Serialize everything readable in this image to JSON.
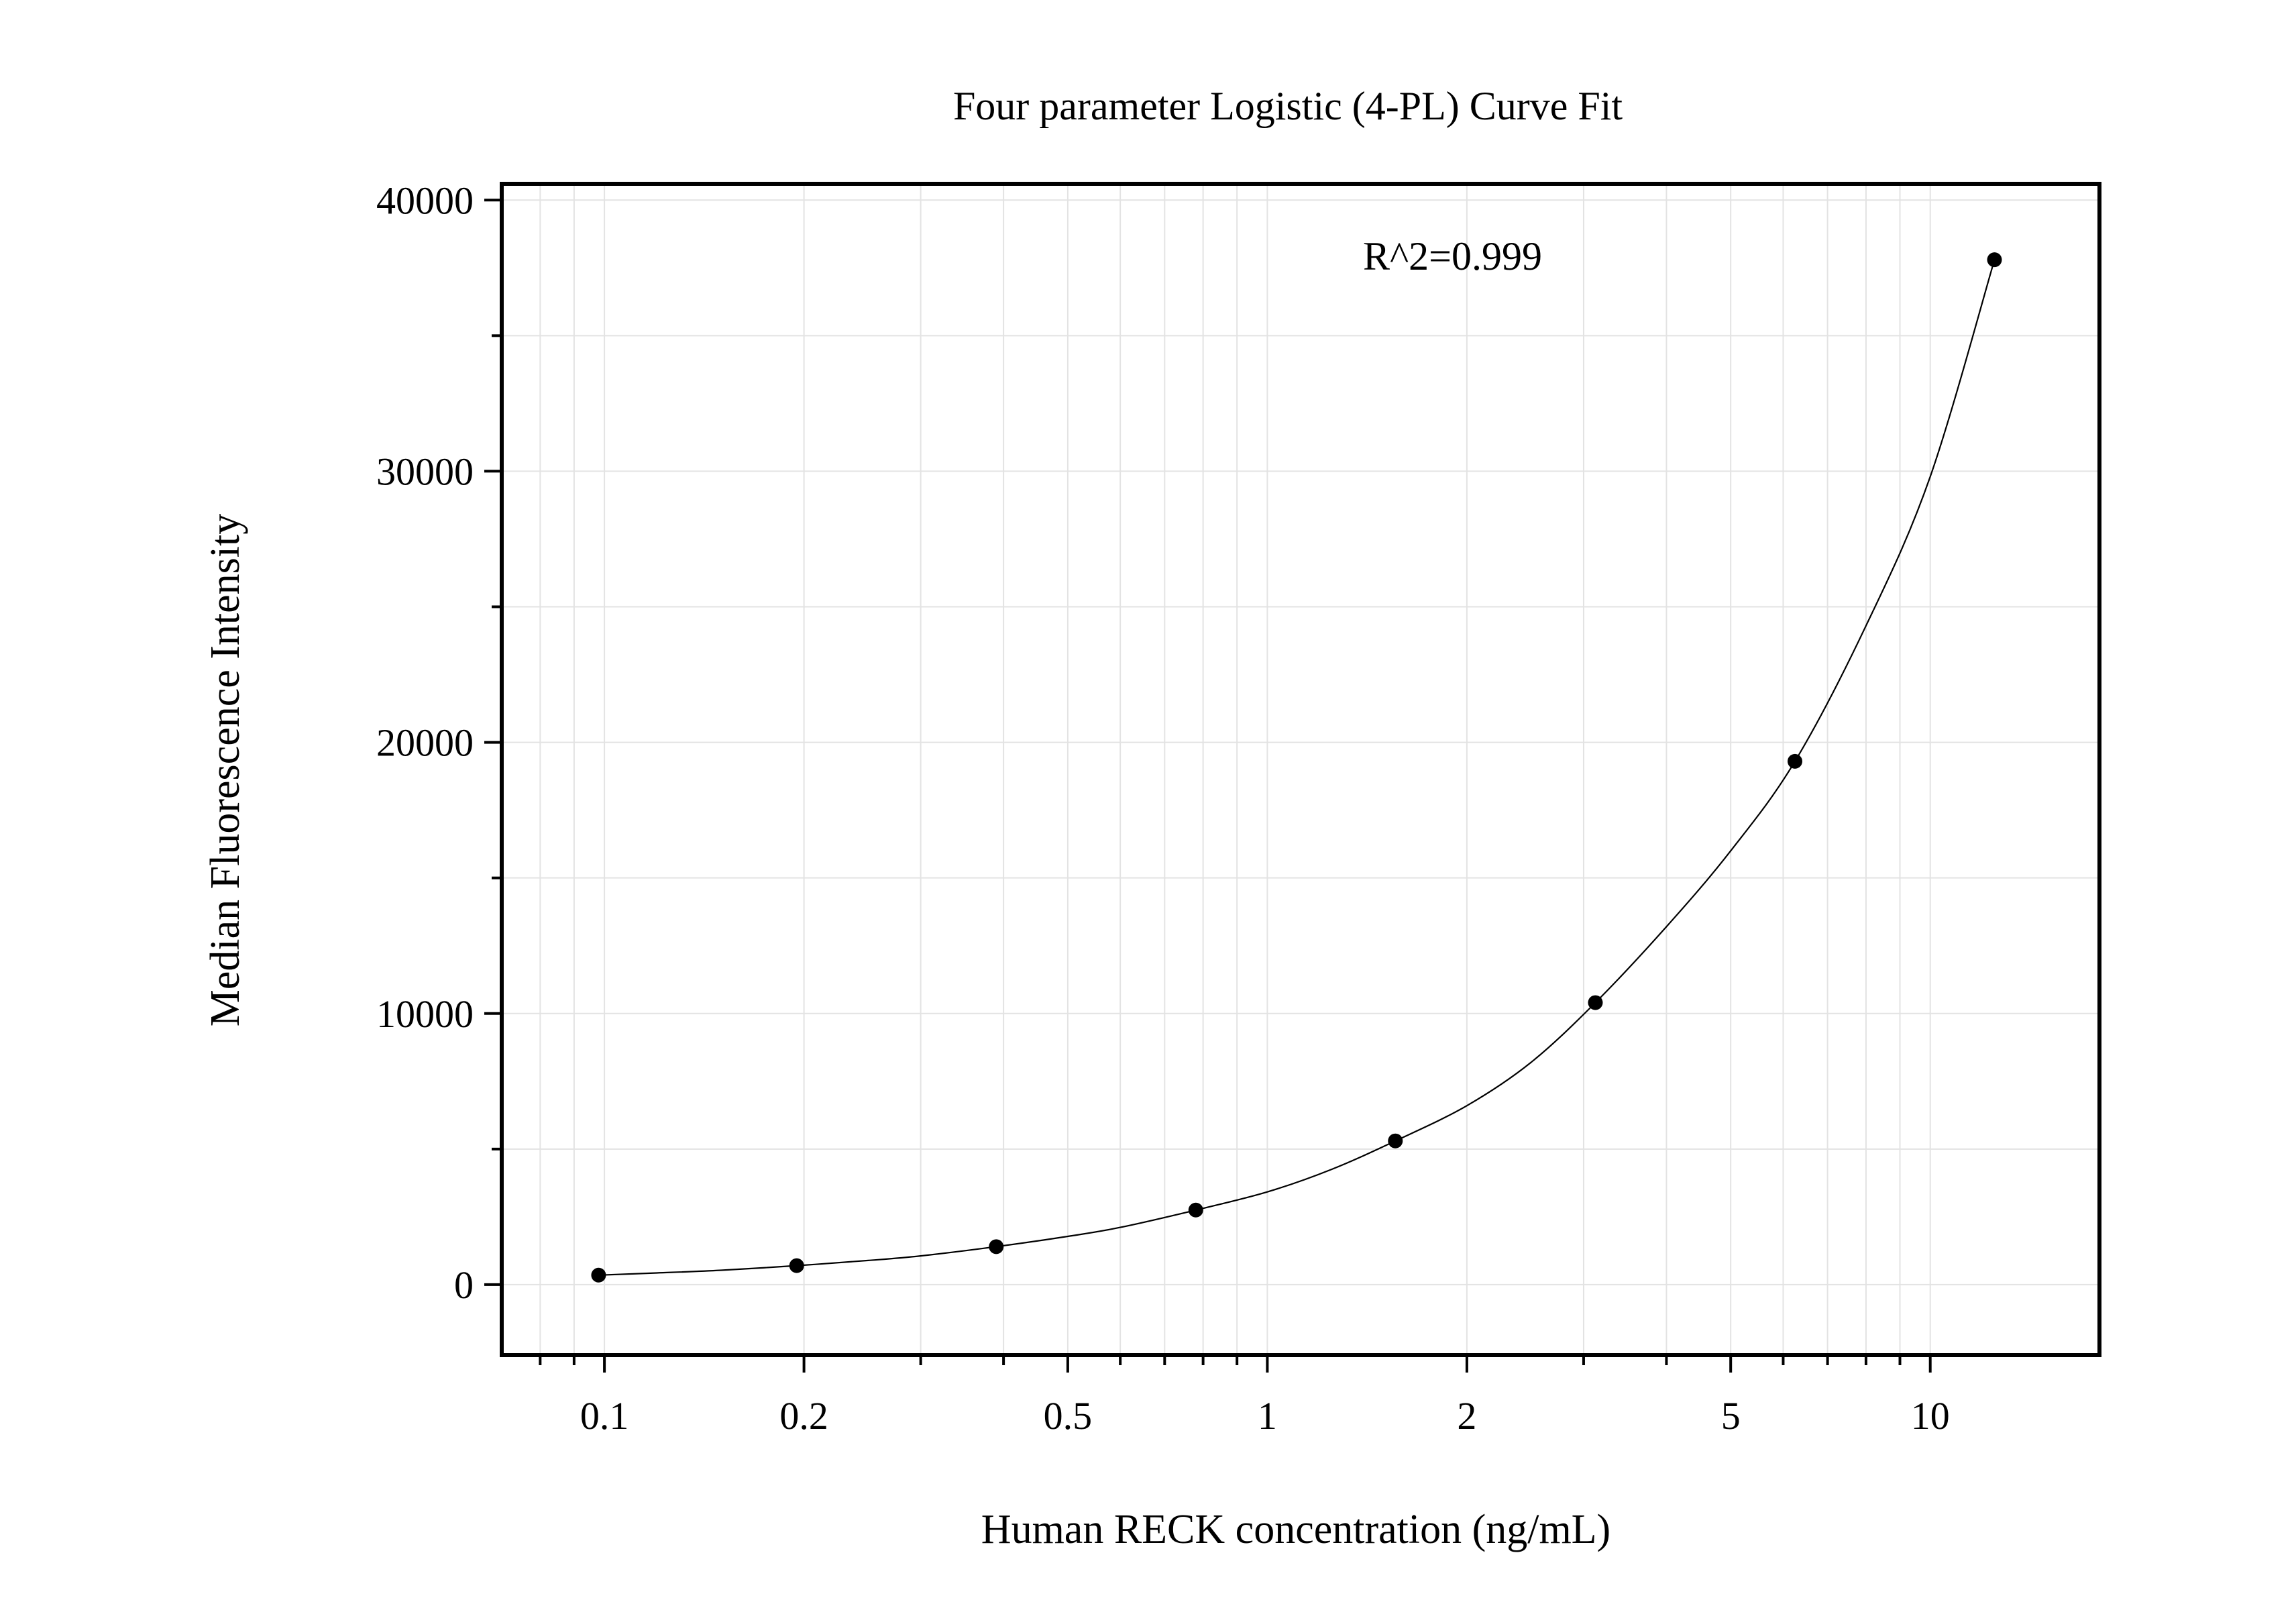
{
  "chart_data": {
    "type": "scatter",
    "title": "Four parameter Logistic (4-PL) Curve Fit",
    "xlabel": "Human RECK concentration (ng/mL)",
    "ylabel": "Median Fluorescence Intensity",
    "x_scale": "log",
    "xlim": [
      0.07,
      18
    ],
    "ylim": [
      -2600,
      40600
    ],
    "x_ticks": [
      0.1,
      0.2,
      0.5,
      1,
      2,
      5,
      10
    ],
    "x_tick_labels": [
      "0.1",
      "0.2",
      "0.5",
      "1",
      "2",
      "5",
      "10"
    ],
    "y_ticks": [
      0,
      10000,
      20000,
      30000,
      40000
    ],
    "y_tick_labels": [
      "0",
      "10000",
      "20000",
      "30000",
      "40000"
    ],
    "grid": true,
    "annotation": "R^2=0.999",
    "series": [
      {
        "x": [
          0.098,
          0.195,
          0.39,
          0.78,
          1.56,
          3.125,
          6.25,
          12.5
        ],
        "y": [
          350,
          700,
          1400,
          2750,
          5300,
          10400,
          19300,
          37800
        ]
      }
    ],
    "fit": {
      "model": "4PL",
      "curve_x": [
        0.098,
        0.12,
        0.15,
        0.195,
        0.25,
        0.3,
        0.39,
        0.5,
        0.6,
        0.78,
        1.0,
        1.25,
        1.56,
        2.0,
        2.5,
        3.125,
        4.0,
        5.0,
        6.25,
        8.0,
        10.0,
        12.5
      ],
      "curve_y": [
        350,
        430,
        530,
        700,
        890,
        1060,
        1400,
        1780,
        2110,
        2750,
        3420,
        4250,
        5300,
        6600,
        8200,
        10400,
        13200,
        16000,
        19300,
        24300,
        29800,
        37800
      ]
    }
  }
}
